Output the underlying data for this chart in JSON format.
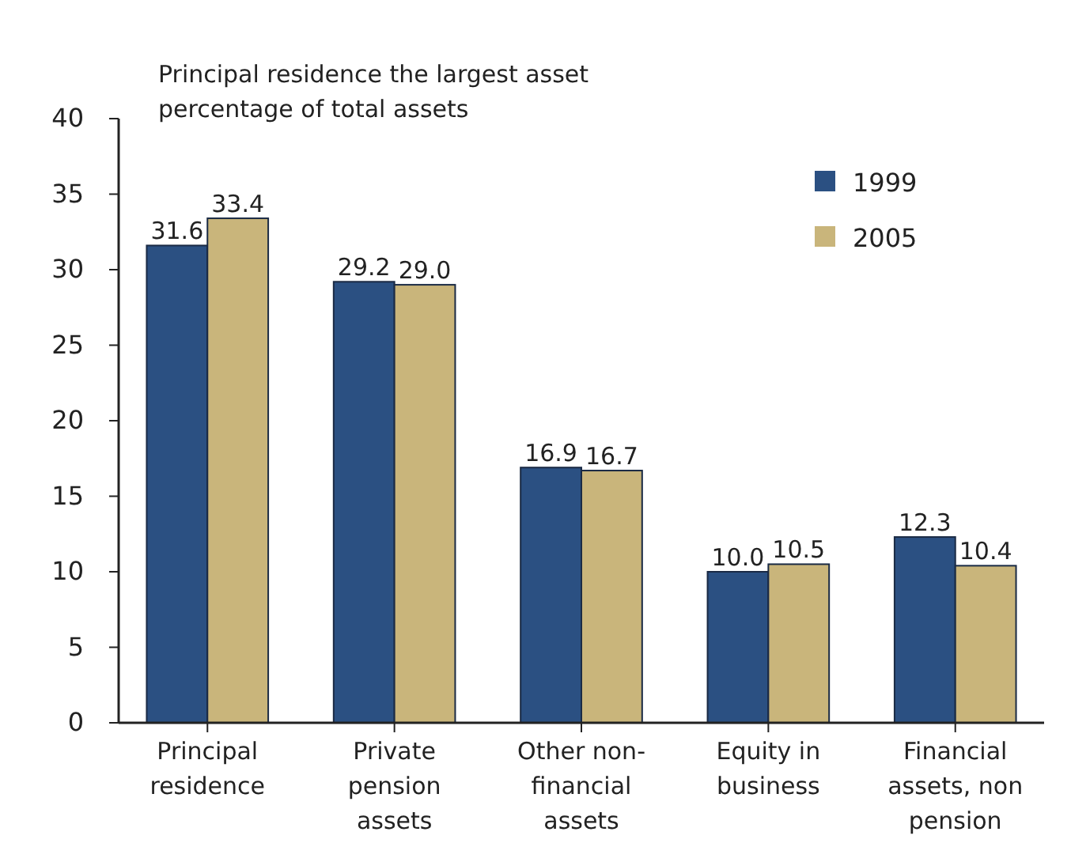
{
  "chart_data": {
    "type": "bar",
    "title": "Principal residence the largest asset percentage of total assets",
    "categories": [
      "Principal residence",
      "Private pension assets",
      "Other non-financial assets",
      "Equity in business",
      "Financial assets, non pension"
    ],
    "series": [
      {
        "name": "1999",
        "color": "#2b5082",
        "values": [
          31.6,
          29.2,
          16.9,
          10.0,
          12.3
        ],
        "value_labels": [
          "31.6",
          "29.2",
          "16.9",
          "10.0",
          "12.3"
        ]
      },
      {
        "name": "2005",
        "color": "#c9b57b",
        "values": [
          33.4,
          29.0,
          16.7,
          10.5,
          10.4
        ],
        "value_labels": [
          "33.4",
          "29.0",
          "16.7",
          "10.5",
          "10.4"
        ]
      }
    ],
    "ylim": [
      0,
      40
    ],
    "yticks": [
      0,
      5,
      10,
      15,
      20,
      25,
      30,
      35,
      40
    ],
    "grid": false,
    "legend": "top right"
  }
}
